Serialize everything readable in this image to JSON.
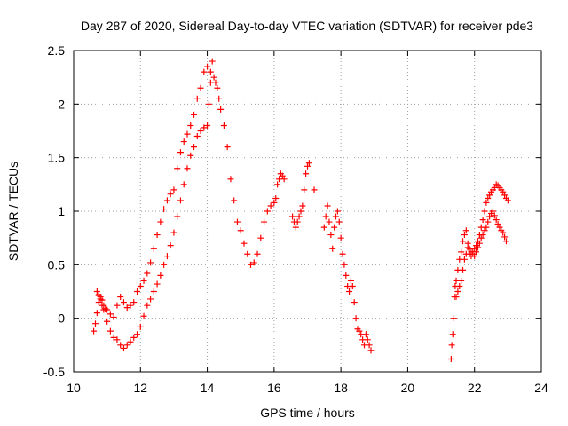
{
  "chart_data": {
    "type": "scatter",
    "title": "Day 287 of 2020, Sidereal Day-to-day VTEC variation (SDTVAR) for receiver pde3",
    "xlabel": "GPS time / hours",
    "ylabel": "SDTVAR / TECUs",
    "xlim": [
      10,
      24
    ],
    "ylim": [
      -0.5,
      2.5
    ],
    "xticks": [
      10,
      12,
      14,
      16,
      18,
      20,
      22,
      24
    ],
    "xtick_labels": [
      "10",
      "12",
      "14",
      "16",
      "18",
      "20",
      "22",
      "24"
    ],
    "yticks": [
      -0.5,
      0,
      0.5,
      1,
      1.5,
      2,
      2.5
    ],
    "ytick_labels": [
      "-0.5",
      "0",
      "0.5",
      "1",
      "1.5",
      "2",
      "2.5"
    ],
    "grid": true,
    "marker": "+",
    "series_color": "#ff0000",
    "series": [
      {
        "name": "SDTVAR",
        "x": [
          10.6,
          10.65,
          10.7,
          10.75,
          10.8,
          10.85,
          10.9,
          10.95,
          11.0,
          11.1,
          11.2,
          11.3,
          11.4,
          11.5,
          11.6,
          11.7,
          11.8,
          11.9,
          12.0,
          12.1,
          12.2,
          12.3,
          12.4,
          12.5,
          12.6,
          12.7,
          12.8,
          12.9,
          13.0,
          13.1,
          13.2,
          13.3,
          13.4,
          13.5,
          13.6,
          13.7,
          13.8,
          13.9,
          14.0,
          14.1,
          14.2,
          14.25,
          14.3,
          14.35,
          14.4,
          14.5,
          14.6,
          14.7,
          14.8,
          14.9,
          15.0,
          15.1,
          15.2,
          15.3,
          15.4,
          15.5,
          15.6,
          15.7,
          15.8,
          15.9,
          16.0,
          16.05,
          16.1,
          16.15,
          16.2,
          16.25,
          16.3,
          10.7,
          10.75,
          10.8,
          10.85,
          10.9,
          11.0,
          11.1,
          11.2,
          11.3,
          11.4,
          11.5,
          11.6,
          11.7,
          11.8,
          11.9,
          12.0,
          12.1,
          12.2,
          12.3,
          12.4,
          12.5,
          12.6,
          12.7,
          12.8,
          12.9,
          13.0,
          13.1,
          13.2,
          13.3,
          13.4,
          13.5,
          13.6,
          13.7,
          13.8,
          13.9,
          14.0,
          14.05,
          14.1,
          14.15,
          16.55,
          16.6,
          16.65,
          16.7,
          16.75,
          16.8,
          16.85,
          16.9,
          16.95,
          17.0,
          17.05,
          17.2,
          17.5,
          17.55,
          17.6,
          17.65,
          17.7,
          17.75,
          17.8,
          17.85,
          17.9,
          17.95,
          18.0,
          18.05,
          18.1,
          18.15,
          18.2,
          18.25,
          18.3,
          18.35,
          18.4,
          18.45,
          18.5,
          18.55,
          18.6,
          18.65,
          18.7,
          18.75,
          18.8,
          18.85,
          18.9,
          21.3,
          21.32,
          21.35,
          21.38,
          21.4,
          21.42,
          21.45,
          21.5,
          21.55,
          21.6,
          21.65,
          21.7,
          21.75,
          21.8,
          21.85,
          21.9,
          21.95,
          22.0,
          22.05,
          22.1,
          22.15,
          22.2,
          22.25,
          22.3,
          22.35,
          22.4,
          22.45,
          22.5,
          22.55,
          22.6,
          22.65,
          22.7,
          22.75,
          22.8,
          22.85,
          22.9,
          22.95,
          23.0,
          21.45,
          21.5,
          21.55,
          21.6,
          21.65,
          21.7,
          21.75,
          21.8,
          21.85,
          21.9,
          21.95,
          22.0,
          22.05,
          22.1,
          22.15,
          22.2,
          22.25,
          22.3,
          22.35,
          22.4,
          22.45,
          22.5,
          22.55,
          22.6,
          22.65,
          22.7,
          22.75,
          22.8,
          22.85,
          22.9,
          22.95
        ],
        "y": [
          -0.12,
          -0.05,
          0.05,
          0.15,
          0.2,
          0.17,
          0.12,
          0.09,
          0.08,
          0.04,
          0.01,
          0.12,
          0.2,
          0.15,
          0.1,
          0.12,
          0.15,
          0.25,
          0.3,
          0.35,
          0.42,
          0.52,
          0.65,
          0.78,
          0.9,
          1.02,
          1.1,
          1.16,
          1.2,
          1.4,
          1.55,
          1.65,
          1.72,
          1.8,
          1.9,
          2.05,
          2.15,
          2.3,
          2.35,
          2.3,
          2.25,
          2.2,
          2.15,
          2.05,
          1.95,
          1.8,
          1.6,
          1.3,
          1.1,
          0.9,
          0.82,
          0.7,
          0.6,
          0.5,
          0.52,
          0.6,
          0.75,
          0.9,
          1.0,
          1.05,
          1.08,
          1.12,
          1.25,
          1.3,
          1.35,
          1.33,
          1.3,
          0.25,
          0.22,
          0.18,
          0.12,
          0.08,
          -0.03,
          -0.12,
          -0.18,
          -0.2,
          -0.25,
          -0.28,
          -0.25,
          -0.22,
          -0.18,
          -0.15,
          -0.08,
          0.02,
          0.12,
          0.18,
          0.25,
          0.32,
          0.4,
          0.5,
          0.58,
          0.68,
          0.8,
          0.95,
          1.1,
          1.25,
          1.4,
          1.52,
          1.6,
          1.7,
          1.75,
          1.78,
          1.8,
          2.0,
          2.2,
          2.4,
          0.95,
          0.9,
          0.85,
          0.9,
          0.95,
          1.0,
          1.05,
          1.2,
          1.35,
          1.42,
          1.45,
          1.2,
          0.85,
          0.95,
          1.05,
          0.9,
          0.78,
          0.65,
          0.85,
          0.95,
          1.0,
          0.9,
          0.75,
          0.6,
          0.5,
          0.4,
          0.3,
          0.25,
          0.35,
          0.3,
          0.15,
          0.0,
          -0.1,
          -0.12,
          -0.15,
          -0.2,
          -0.25,
          -0.15,
          -0.2,
          -0.25,
          -0.3,
          -0.38,
          -0.25,
          -0.15,
          0.0,
          0.2,
          0.3,
          0.35,
          0.45,
          0.55,
          0.62,
          0.72,
          0.78,
          0.82,
          0.7,
          0.6,
          0.58,
          0.62,
          0.65,
          0.68,
          0.72,
          0.78,
          0.85,
          0.92,
          1.0,
          1.08,
          1.12,
          1.15,
          1.18,
          1.2,
          1.22,
          1.25,
          1.24,
          1.22,
          1.2,
          1.18,
          1.15,
          1.12,
          1.1,
          0.2,
          0.25,
          0.3,
          0.35,
          0.45,
          0.55,
          0.6,
          0.66,
          0.65,
          0.62,
          0.6,
          0.58,
          0.62,
          0.66,
          0.7,
          0.75,
          0.78,
          0.82,
          0.85,
          0.9,
          0.95,
          0.98,
          1.0,
          0.96,
          0.92,
          0.88,
          0.85,
          0.82,
          0.8,
          0.76,
          0.72
        ]
      }
    ]
  }
}
